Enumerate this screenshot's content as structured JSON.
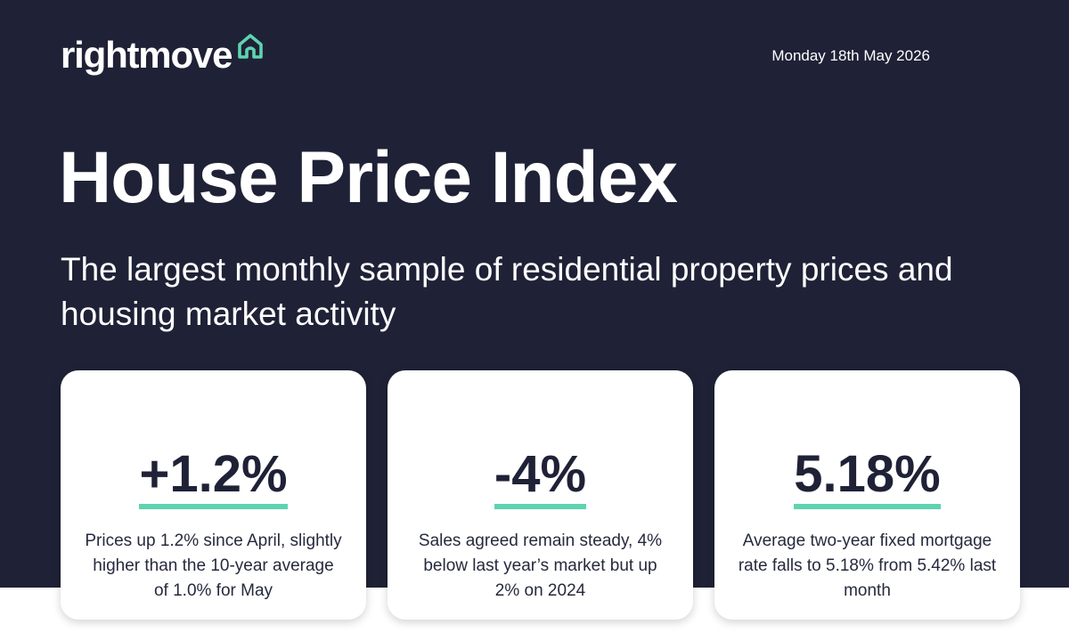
{
  "brand": {
    "name": "rightmove",
    "icon": "house-outline-icon",
    "accent_color": "#5fd3b1",
    "background_color": "#1f2236"
  },
  "header": {
    "date": "Monday 18th May  2026"
  },
  "hero": {
    "title": "House Price Index",
    "subtitle": "The largest monthly sample of residential property prices and housing market activity"
  },
  "cards": [
    {
      "value": "+1.2%",
      "description": "Prices up 1.2% since April, slightly higher than the 10-year average of 1.0% for May"
    },
    {
      "value": "-4%",
      "description": "Sales agreed remain steady, 4% below last year’s market but up 2% on 2024"
    },
    {
      "value": "5.18%",
      "description": "Average two-year fixed mortgage rate falls to 5.18% from 5.42% last month"
    }
  ]
}
